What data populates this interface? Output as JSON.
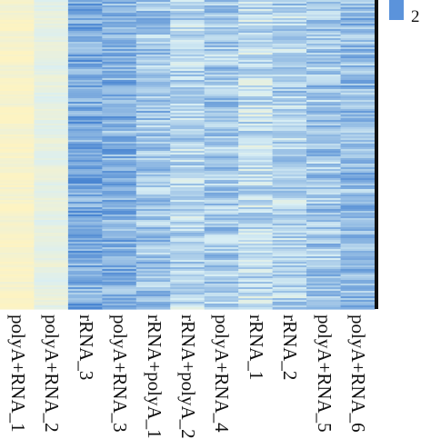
{
  "chart_data": {
    "type": "heatmap",
    "columns": [
      "polyA+RNA_1",
      "polyA+RNA_2",
      "rRNA_3",
      "polyA+RNA_3",
      "rRNA+polyA_1",
      "rRNA+polyA_2",
      "polyA+RNA_4",
      "rRNA_1",
      "rRNA_2",
      "polyA+RNA_5",
      "polyA+RNA_6"
    ],
    "legend": {
      "visible_tick": "2",
      "color_for_tick": "#5b93db"
    },
    "colors": {
      "low": "#fdf3c2",
      "mid": "#d8eef4",
      "high": "#4a86d2",
      "separator": "#111111"
    },
    "column_levels": [
      0.05,
      0.22,
      0.78,
      0.72,
      0.62,
      0.5,
      0.58,
      0.46,
      0.52,
      0.6,
      0.66
    ]
  }
}
